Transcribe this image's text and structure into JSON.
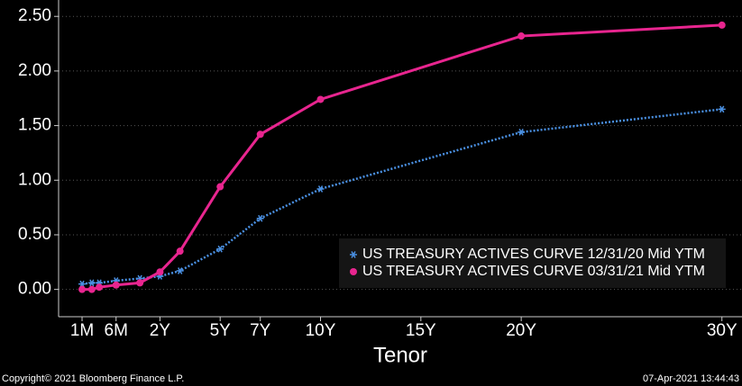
{
  "chart_data": {
    "type": "line",
    "x_label": "Tenor",
    "x": [
      0.0833,
      0.1667,
      0.25,
      0.5,
      1,
      2,
      3,
      5,
      7,
      10,
      20,
      30
    ],
    "series": [
      {
        "name": "US TREASURY ACTIVES CURVE 12/31/20 Mid YTM",
        "color": "#4a90e2",
        "marker": "star",
        "line_style": "dotted",
        "values": [
          0.05,
          0.06,
          0.06,
          0.08,
          0.1,
          0.12,
          0.17,
          0.37,
          0.65,
          0.92,
          1.44,
          1.65
        ]
      },
      {
        "name": "US TREASURY ACTIVES CURVE 03/31/21 Mid YTM",
        "color": "#e8258f",
        "marker": "circle",
        "line_style": "solid",
        "values": [
          0.0,
          0.0,
          0.02,
          0.04,
          0.06,
          0.16,
          0.35,
          0.94,
          1.42,
          1.74,
          2.32,
          2.42
        ]
      }
    ],
    "xlim": [
      0,
      31
    ],
    "xticks": [
      {
        "value": 0.0833,
        "label": "1M"
      },
      {
        "value": 0.5,
        "label": "6M"
      },
      {
        "value": 2,
        "label": "2Y"
      },
      {
        "value": 5,
        "label": "5Y"
      },
      {
        "value": 7,
        "label": "7Y"
      },
      {
        "value": 10,
        "label": "10Y"
      },
      {
        "value": 15,
        "label": "15Y"
      },
      {
        "value": 20,
        "label": "20Y"
      },
      {
        "value": 30,
        "label": "30Y"
      }
    ],
    "ylim": [
      -0.25,
      2.65
    ],
    "yticks": [
      {
        "value": 0,
        "label": "0.00"
      },
      {
        "value": 0.5,
        "label": "0.50"
      },
      {
        "value": 1,
        "label": "1.00"
      },
      {
        "value": 1.5,
        "label": "1.50"
      },
      {
        "value": 2,
        "label": "2.00"
      },
      {
        "value": 2.5,
        "label": "2.50"
      }
    ],
    "grid": true,
    "legend_position": "lower right",
    "footer_left": "Copyright© 2021 Bloomberg Finance L.P.",
    "footer_right": "07-Apr-2021 13:44:43"
  }
}
